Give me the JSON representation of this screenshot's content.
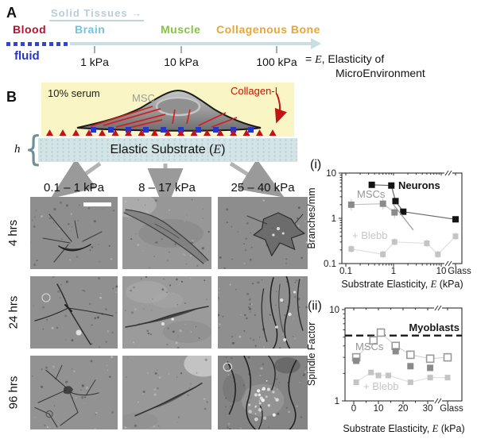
{
  "panelA": {
    "label": "A",
    "solid_tissues_label": "Solid Tissues",
    "solid_tissues_arrow": "→",
    "tissues": [
      {
        "name": "Blood",
        "color": "#b5122d"
      },
      {
        "name": "Brain",
        "color": "#72c3e4"
      },
      {
        "name": "Muscle",
        "color": "#85c440"
      },
      {
        "name": "Collagenous Bone",
        "color": "#eca62f"
      }
    ],
    "fluid_label": "fluid",
    "fluid_color": "#2a35c8",
    "axis_ticks": [
      "1 kPa",
      "10 kPa",
      "100 kPa"
    ],
    "equation": {
      "prefix": "= ",
      "symbol": "E",
      "suffix": ", Elasticity of",
      "line2": "MicroEnvironment"
    }
  },
  "panelB": {
    "label": "B",
    "serum_label": "10% serum",
    "cell_label": "MSC",
    "cell_label_color": "#9b9b9b",
    "collagen_label": "Collagen-I",
    "collagen_color": "#cc1100",
    "thickness_label": "h",
    "substrate_label": {
      "prefix": "Elastic Substrate (",
      "symbol": "E",
      "suffix": ")"
    },
    "column_headers": [
      "0.1 – 1 kPa",
      "8 – 17 kPa",
      "25 – 40 kPa"
    ],
    "row_labels": [
      "4 hrs",
      "24 hrs",
      "96 hrs"
    ]
  },
  "chart_data": [
    {
      "panel_label": "(i)",
      "type": "scatter",
      "xscale": "log",
      "yscale": "log",
      "xlim": [
        0.1,
        10
      ],
      "ylim": [
        0.1,
        10
      ],
      "x_extra": "Glass",
      "xlabel": {
        "prefix": "Substrate Elasticity, ",
        "symbol": "E",
        "suffix": " (kPa)"
      },
      "ylabel": "Branches/mm",
      "xticks": {
        "values": [
          0.1,
          1,
          10
        ],
        "labels": [
          "0.1",
          "1",
          "10"
        ],
        "extra": "Glass"
      },
      "yticks": {
        "values": [
          0.1,
          1,
          10
        ],
        "labels": [
          "0.1",
          "1",
          "10"
        ]
      },
      "series": [
        {
          "name": "Neurons",
          "marker": "filled-black",
          "connect": true,
          "points": [
            [
              0.35,
              5.5
            ],
            [
              0.9,
              5.3
            ],
            [
              1.1,
              2.4
            ],
            [
              1.6,
              1.4
            ],
            [
              "Glass",
              0.95
            ]
          ]
        },
        {
          "name": "MSCs",
          "marker": "filled-gray",
          "connect": true,
          "yerr_frac": 0.35,
          "points": [
            [
              0.13,
              2.0
            ],
            [
              0.6,
              2.1
            ],
            [
              1.05,
              1.35
            ]
          ],
          "trend_line": [
            [
              1.0,
              2.0
            ],
            [
              2.6,
              0.55
            ]
          ]
        },
        {
          "name": "+ Blebb",
          "marker": "filled-lightgray",
          "connect": true,
          "yerr_frac": 0.2,
          "points": [
            [
              0.13,
              0.21
            ],
            [
              0.6,
              0.16
            ],
            [
              1.05,
              0.3
            ],
            [
              5,
              0.28
            ],
            [
              8.5,
              0.16
            ],
            [
              "Glass",
              0.4
            ]
          ]
        }
      ],
      "annotations": [
        "Neurons",
        "MSCs",
        "+ Blebb"
      ]
    },
    {
      "panel_label": "(ii)",
      "type": "scatter",
      "xscale": "linear",
      "yscale": "log",
      "xlim": [
        0,
        35
      ],
      "ylim": [
        1,
        10
      ],
      "x_extra": "Glass",
      "xlabel": {
        "prefix": "Substrate Elasticity, ",
        "symbol": "E",
        "suffix": " (kPa)"
      },
      "ylabel": "Spindle Factor",
      "xticks": {
        "values": [
          0,
          10,
          20,
          30
        ],
        "labels": [
          "0",
          "10",
          "20",
          "30"
        ],
        "extra": "Glass"
      },
      "yticks": {
        "values": [
          1,
          10
        ],
        "labels": [
          "1",
          "10"
        ]
      },
      "hline": {
        "value": 5.2,
        "label": "Myoblasts",
        "style": "dashed"
      },
      "series": [
        {
          "name": "MSCs",
          "marker": "open-gray",
          "connect": true,
          "yerr_frac": 0.12,
          "points": [
            [
              1,
              3.0
            ],
            [
              8,
              4.6
            ],
            [
              11,
              5.6
            ],
            [
              17,
              4.0
            ],
            [
              23,
              3.2
            ],
            [
              31,
              2.9
            ],
            [
              "Glass",
              3.0
            ]
          ]
        },
        {
          "name": "MSCs (filled)",
          "marker": "filled-gray",
          "connect": false,
          "points": [
            [
              1,
              2.75
            ],
            [
              17,
              3.5
            ],
            [
              23,
              2.4
            ],
            [
              31,
              2.3
            ]
          ]
        },
        {
          "name": "+ Blebb",
          "marker": "filled-lightgray",
          "connect": true,
          "points": [
            [
              1,
              1.6
            ],
            [
              7,
              2.05
            ],
            [
              10,
              1.9
            ],
            [
              14,
              1.9
            ],
            [
              23,
              1.6
            ],
            [
              31,
              1.8
            ],
            [
              "Glass",
              1.8
            ]
          ]
        }
      ],
      "annotations": [
        "MSCs",
        "+ Blebb"
      ]
    }
  ]
}
